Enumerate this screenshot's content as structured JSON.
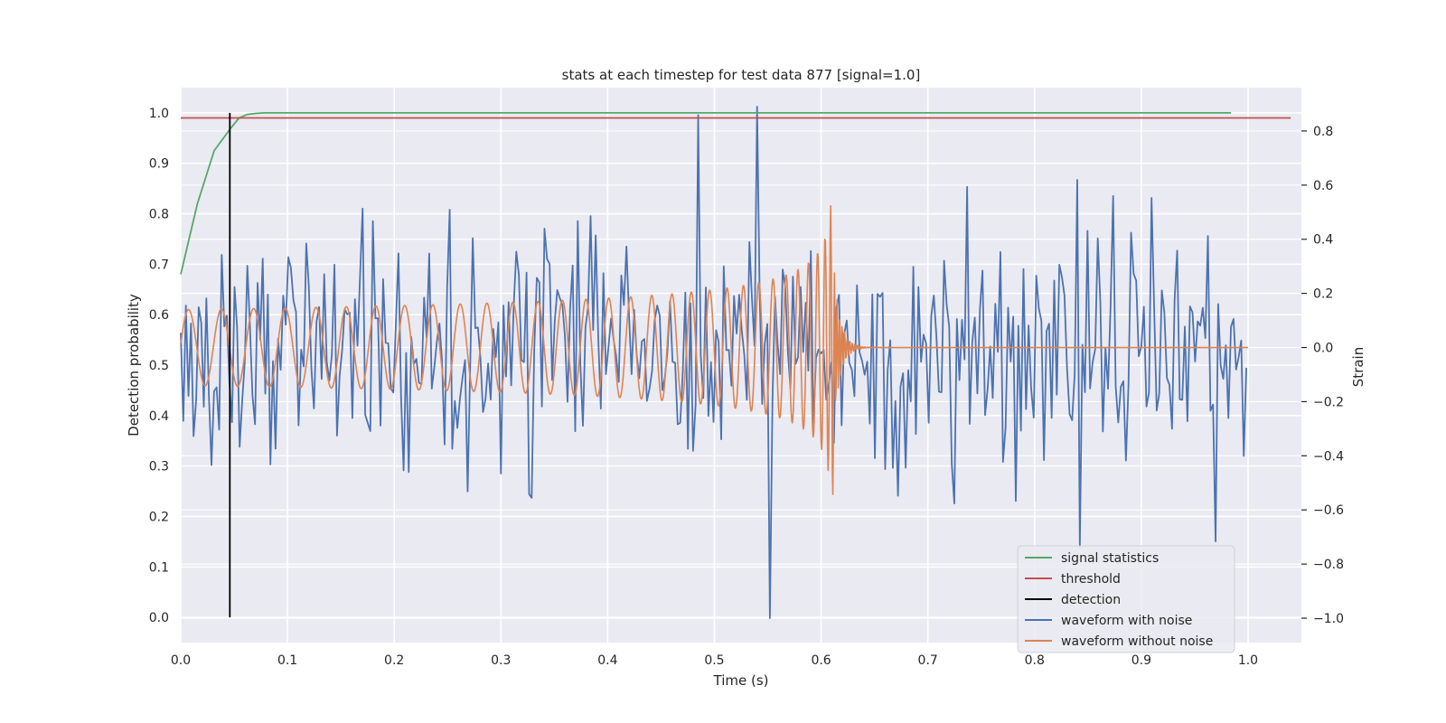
{
  "chart_data": {
    "type": "line",
    "title": "stats at each timestep for test data 877 [signal=1.0]",
    "xlabel": "Time (s)",
    "ylabel": "Detection probability",
    "ylabel_right": "Strain",
    "xlim": [
      0.0,
      1.05
    ],
    "ylim": [
      -0.05,
      1.05
    ],
    "ylim_right": [
      -1.09,
      0.96
    ],
    "xticks": [
      0.0,
      0.1,
      0.2,
      0.3,
      0.4,
      0.5,
      0.6,
      0.7,
      0.8,
      0.9,
      1.0
    ],
    "xtick_labels": [
      "0.0",
      "0.1",
      "0.2",
      "0.3",
      "0.4",
      "0.5",
      "0.6",
      "0.7",
      "0.8",
      "0.9",
      "1.0"
    ],
    "yticks": [
      0.0,
      0.1,
      0.2,
      0.3,
      0.4,
      0.5,
      0.6,
      0.7,
      0.8,
      0.9,
      1.0
    ],
    "ytick_labels": [
      "0.0",
      "0.1",
      "0.2",
      "0.3",
      "0.4",
      "0.5",
      "0.6",
      "0.7",
      "0.8",
      "0.9",
      "1.0"
    ],
    "yticks_right": [
      -1.0,
      -0.8,
      -0.6,
      -0.4,
      -0.2,
      0.0,
      0.2,
      0.4,
      0.6,
      0.8
    ],
    "ytick_labels_right": [
      "−1.0",
      "−0.8",
      "−0.6",
      "−0.4",
      "−0.2",
      "0.0",
      "0.2",
      "0.4",
      "0.6",
      "0.8"
    ],
    "grid": true,
    "legend_position": "lower-right",
    "series": [
      {
        "name": "signal statistics",
        "color": "#55a868",
        "axis": "left",
        "x": [
          0.0,
          0.0156,
          0.0313,
          0.0469,
          0.0547,
          0.0625,
          0.0703,
          0.0781,
          0.1,
          0.2,
          0.3,
          0.4,
          0.5,
          0.6,
          0.7,
          0.8,
          0.9,
          0.984
        ],
        "y": [
          0.68,
          0.82,
          0.925,
          0.97,
          0.99,
          0.997,
          0.999,
          1.0,
          1.0,
          1.0,
          1.0,
          1.0,
          1.0,
          1.0,
          1.0,
          1.0,
          1.0,
          1.0
        ]
      },
      {
        "name": "threshold",
        "color": "#c44e52",
        "axis": "left",
        "x": [
          0.0,
          1.04
        ],
        "y": [
          0.99,
          0.99
        ]
      },
      {
        "name": "detection",
        "color": "#000000",
        "axis": "left",
        "x": [
          0.046,
          0.046
        ],
        "y": [
          0.0,
          1.0
        ]
      },
      {
        "name": "waveform with noise",
        "color": "#4c72b0",
        "axis": "right"
      },
      {
        "name": "waveform without noise",
        "color": "#dd8452",
        "axis": "right"
      }
    ]
  }
}
